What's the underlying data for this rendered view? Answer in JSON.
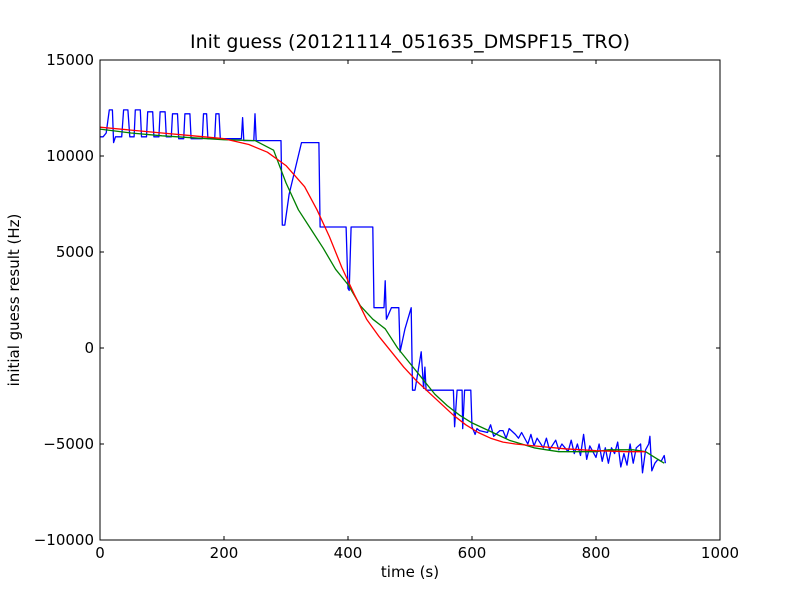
{
  "chart_data": {
    "type": "line",
    "title": "Init guess (20121114_051635_DMSPF15_TRO)",
    "xlabel": "time (s)",
    "ylabel": "initial guess result (Hz)",
    "xlim": [
      0,
      1000
    ],
    "ylim": [
      -10000,
      15000
    ],
    "xticks": [
      0,
      200,
      400,
      600,
      800,
      1000
    ],
    "yticks": [
      -10000,
      -5000,
      0,
      5000,
      10000,
      15000
    ],
    "grid": false,
    "series": [
      {
        "color": "#0000ff",
        "points": [
          [
            0,
            11000
          ],
          [
            5,
            11000
          ],
          [
            10,
            11200
          ],
          [
            15,
            12400
          ],
          [
            20,
            12400
          ],
          [
            22,
            10700
          ],
          [
            25,
            11000
          ],
          [
            35,
            11000
          ],
          [
            38,
            12400
          ],
          [
            45,
            12400
          ],
          [
            48,
            11000
          ],
          [
            55,
            11000
          ],
          [
            57,
            12400
          ],
          [
            65,
            12400
          ],
          [
            67,
            11000
          ],
          [
            75,
            11000
          ],
          [
            77,
            12300
          ],
          [
            85,
            12300
          ],
          [
            87,
            11000
          ],
          [
            95,
            11000
          ],
          [
            97,
            12300
          ],
          [
            105,
            12300
          ],
          [
            107,
            11000
          ],
          [
            115,
            11000
          ],
          [
            117,
            12200
          ],
          [
            125,
            12200
          ],
          [
            127,
            10900
          ],
          [
            135,
            10900
          ],
          [
            137,
            12200
          ],
          [
            145,
            12200
          ],
          [
            147,
            10900
          ],
          [
            165,
            10900
          ],
          [
            167,
            12200
          ],
          [
            172,
            12200
          ],
          [
            174,
            10900
          ],
          [
            185,
            10900
          ],
          [
            187,
            12200
          ],
          [
            192,
            12200
          ],
          [
            194,
            10900
          ],
          [
            228,
            10900
          ],
          [
            230,
            12000
          ],
          [
            232,
            10800
          ],
          [
            248,
            10800
          ],
          [
            250,
            12200
          ],
          [
            252,
            10800
          ],
          [
            292,
            10800
          ],
          [
            294,
            6400
          ],
          [
            298,
            6400
          ],
          [
            305,
            8000
          ],
          [
            325,
            10700
          ],
          [
            353,
            10700
          ],
          [
            355,
            6300
          ],
          [
            397,
            6300
          ],
          [
            400,
            3100
          ],
          [
            402,
            3000
          ],
          [
            405,
            6300
          ],
          [
            440,
            6300
          ],
          [
            442,
            2100
          ],
          [
            458,
            2100
          ],
          [
            460,
            3500
          ],
          [
            462,
            1500
          ],
          [
            470,
            2100
          ],
          [
            482,
            2100
          ],
          [
            484,
            -200
          ],
          [
            492,
            1000
          ],
          [
            502,
            2100
          ],
          [
            504,
            -2200
          ],
          [
            508,
            -2200
          ],
          [
            518,
            -200
          ],
          [
            522,
            -2100
          ],
          [
            524,
            -1000
          ],
          [
            526,
            -2200
          ],
          [
            570,
            -2200
          ],
          [
            572,
            -4100
          ],
          [
            576,
            -2200
          ],
          [
            584,
            -2200
          ],
          [
            585,
            -4200
          ],
          [
            588,
            -2200
          ],
          [
            598,
            -2200
          ],
          [
            600,
            -4100
          ],
          [
            605,
            -4500
          ],
          [
            608,
            -4200
          ],
          [
            612,
            -4300
          ],
          [
            625,
            -4400
          ],
          [
            630,
            -4000
          ],
          [
            635,
            -4600
          ],
          [
            645,
            -4300
          ],
          [
            650,
            -4300
          ],
          [
            655,
            -4700
          ],
          [
            660,
            -4200
          ],
          [
            670,
            -4500
          ],
          [
            675,
            -4700
          ],
          [
            680,
            -4400
          ],
          [
            690,
            -5000
          ],
          [
            695,
            -4500
          ],
          [
            700,
            -5100
          ],
          [
            705,
            -4700
          ],
          [
            715,
            -5200
          ],
          [
            720,
            -4700
          ],
          [
            725,
            -5300
          ],
          [
            735,
            -4800
          ],
          [
            740,
            -5300
          ],
          [
            745,
            -5000
          ],
          [
            755,
            -5400
          ],
          [
            760,
            -4800
          ],
          [
            765,
            -5500
          ],
          [
            770,
            -5000
          ],
          [
            775,
            -5600
          ],
          [
            780,
            -4500
          ],
          [
            785,
            -5800
          ],
          [
            790,
            -5100
          ],
          [
            800,
            -5700
          ],
          [
            805,
            -5000
          ],
          [
            810,
            -5900
          ],
          [
            815,
            -5200
          ],
          [
            820,
            -6000
          ],
          [
            825,
            -5200
          ],
          [
            830,
            -5500
          ],
          [
            835,
            -4900
          ],
          [
            840,
            -6200
          ],
          [
            845,
            -5500
          ],
          [
            850,
            -6100
          ],
          [
            855,
            -5000
          ],
          [
            860,
            -6000
          ],
          [
            865,
            -5200
          ],
          [
            872,
            -5000
          ],
          [
            875,
            -6500
          ],
          [
            880,
            -5300
          ],
          [
            885,
            -5000
          ],
          [
            887,
            -4600
          ],
          [
            890,
            -6400
          ],
          [
            895,
            -6000
          ],
          [
            900,
            -5800
          ],
          [
            905,
            -5900
          ],
          [
            910,
            -5600
          ],
          [
            912,
            -6000
          ]
        ]
      },
      {
        "color": "#008000",
        "points": [
          [
            0,
            11400
          ],
          [
            50,
            11200
          ],
          [
            100,
            11050
          ],
          [
            150,
            10950
          ],
          [
            200,
            10850
          ],
          [
            250,
            10800
          ],
          [
            280,
            10300
          ],
          [
            300,
            8600
          ],
          [
            320,
            7200
          ],
          [
            340,
            6200
          ],
          [
            360,
            5200
          ],
          [
            380,
            4100
          ],
          [
            400,
            3300
          ],
          [
            420,
            2200
          ],
          [
            440,
            1500
          ],
          [
            460,
            1000
          ],
          [
            480,
            0
          ],
          [
            500,
            -800
          ],
          [
            520,
            -1600
          ],
          [
            540,
            -2400
          ],
          [
            560,
            -3000
          ],
          [
            580,
            -3500
          ],
          [
            600,
            -3900
          ],
          [
            620,
            -4200
          ],
          [
            640,
            -4500
          ],
          [
            660,
            -4800
          ],
          [
            680,
            -5000
          ],
          [
            700,
            -5200
          ],
          [
            720,
            -5300
          ],
          [
            740,
            -5400
          ],
          [
            760,
            -5400
          ],
          [
            780,
            -5400
          ],
          [
            800,
            -5400
          ],
          [
            820,
            -5300
          ],
          [
            840,
            -5300
          ],
          [
            860,
            -5300
          ],
          [
            880,
            -5400
          ],
          [
            900,
            -5800
          ],
          [
            910,
            -6000
          ]
        ]
      },
      {
        "color": "#ff0000",
        "points": [
          [
            0,
            11500
          ],
          [
            50,
            11350
          ],
          [
            100,
            11200
          ],
          [
            150,
            11050
          ],
          [
            200,
            10900
          ],
          [
            240,
            10600
          ],
          [
            270,
            10200
          ],
          [
            300,
            9500
          ],
          [
            330,
            8400
          ],
          [
            350,
            7200
          ],
          [
            370,
            5800
          ],
          [
            390,
            4200
          ],
          [
            410,
            2800
          ],
          [
            430,
            1500
          ],
          [
            450,
            600
          ],
          [
            470,
            -200
          ],
          [
            490,
            -1000
          ],
          [
            510,
            -1700
          ],
          [
            530,
            -2300
          ],
          [
            550,
            -2900
          ],
          [
            570,
            -3500
          ],
          [
            590,
            -4000
          ],
          [
            610,
            -4400
          ],
          [
            630,
            -4700
          ],
          [
            650,
            -4900
          ],
          [
            670,
            -5000
          ],
          [
            700,
            -5100
          ],
          [
            750,
            -5250
          ],
          [
            800,
            -5350
          ],
          [
            850,
            -5400
          ],
          [
            880,
            -5400
          ]
        ]
      }
    ]
  }
}
